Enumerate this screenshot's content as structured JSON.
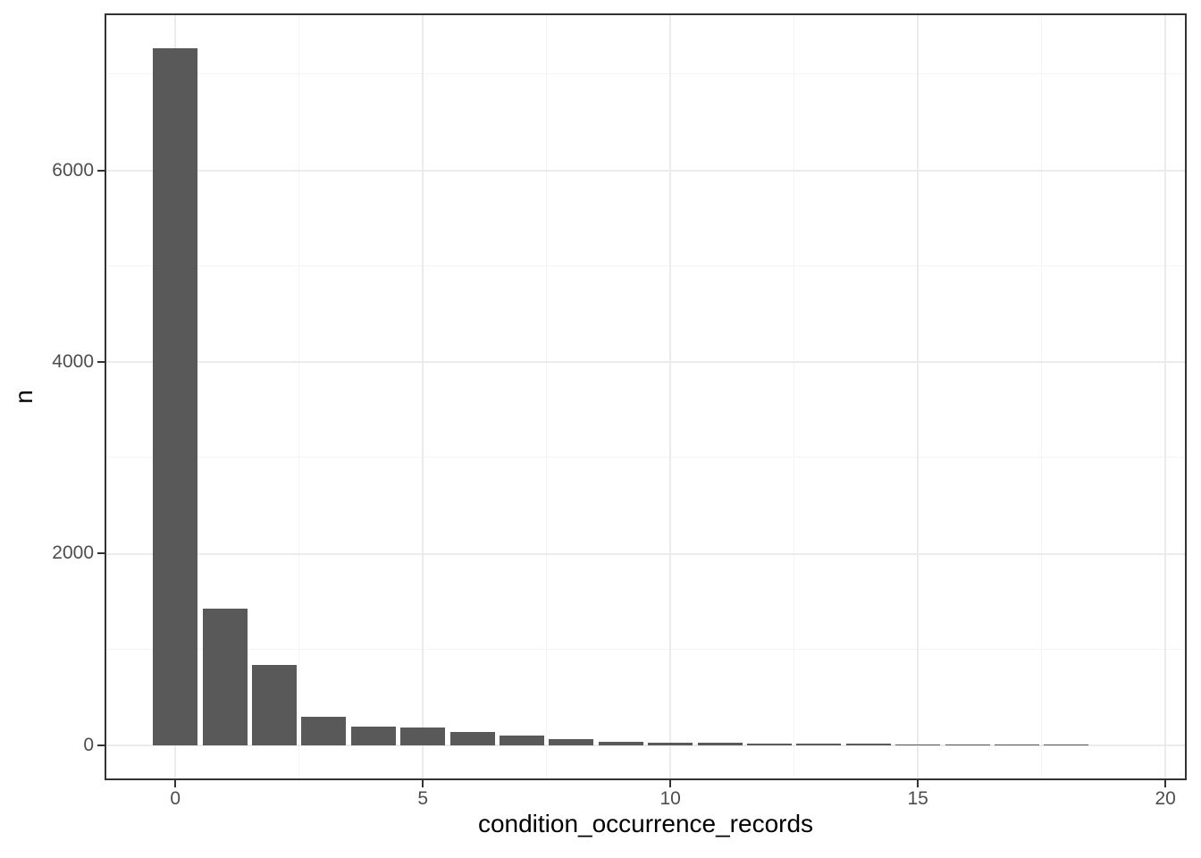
{
  "chart_data": {
    "type": "bar",
    "title": "",
    "xlabel": "condition_occurrence_records",
    "ylabel": "n",
    "x": [
      0,
      1,
      2,
      3,
      4,
      5,
      6,
      7,
      8,
      9,
      10,
      11,
      12,
      13,
      14,
      15,
      16,
      17,
      18
    ],
    "values": [
      7273,
      1427,
      839,
      298,
      196,
      191,
      140,
      103,
      65,
      37,
      25,
      25,
      23,
      19,
      19,
      10,
      9,
      9,
      8
    ],
    "bar_width": 0.9,
    "xlim": [
      -1.43,
      20.43
    ],
    "ylim": [
      -364,
      7637
    ],
    "x_ticks": [
      0,
      5,
      10,
      15,
      20
    ],
    "x_minor_ticks": [
      2.5,
      7.5,
      12.5,
      17.5
    ],
    "y_ticks": [
      0,
      2000,
      4000,
      6000
    ],
    "y_minor_ticks": [
      1000,
      3000,
      5000,
      7000
    ],
    "grid": true,
    "legend_position": "none",
    "colors": {
      "bar_fill": "#595959",
      "panel_border": "#333333",
      "grid_major": "#ebebeb",
      "grid_minor": "#f4f4f4",
      "tick_mark": "#333333",
      "tick_label": "#4d4d4d",
      "axis_title": "#000000",
      "background": "#ffffff"
    }
  }
}
